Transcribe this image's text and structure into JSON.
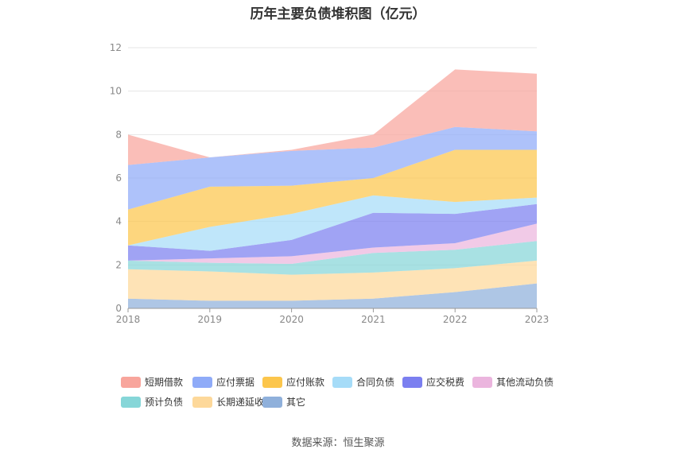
{
  "chart_data": {
    "type": "area",
    "title": "历年主要负债堆积图（亿元）",
    "x": [
      "2018",
      "2019",
      "2020",
      "2021",
      "2022",
      "2023"
    ],
    "ylim": [
      0,
      12
    ],
    "yticks": [
      0,
      2,
      4,
      6,
      8,
      10,
      12
    ],
    "grid": true,
    "legend_position": "bottom",
    "stacked": true,
    "series": [
      {
        "name": "其它",
        "color": "#8fb0db",
        "values": [
          0.45,
          0.35,
          0.35,
          0.45,
          0.75,
          1.15
        ]
      },
      {
        "name": "长期递延收益",
        "color": "#fdd89a",
        "values": [
          1.35,
          1.35,
          1.2,
          1.2,
          1.1,
          1.05
        ]
      },
      {
        "name": "预计负债",
        "color": "#86d6d8",
        "values": [
          0.4,
          0.4,
          0.5,
          0.9,
          0.85,
          0.9
        ]
      },
      {
        "name": "其他流动负债",
        "color": "#ebb5de",
        "values": [
          0.0,
          0.2,
          0.35,
          0.25,
          0.3,
          0.8
        ]
      },
      {
        "name": "应交税费",
        "color": "#7b7ff0",
        "values": [
          0.7,
          0.35,
          0.75,
          1.6,
          1.35,
          0.9
        ]
      },
      {
        "name": "合同负债",
        "color": "#a6dcf8",
        "values": [
          0.0,
          1.1,
          1.2,
          0.8,
          0.55,
          0.3
        ]
      },
      {
        "name": "应付账款",
        "color": "#fcc64c",
        "values": [
          1.65,
          1.85,
          1.3,
          0.8,
          2.4,
          2.2
        ]
      },
      {
        "name": "应付票据",
        "color": "#8fabf8",
        "values": [
          2.05,
          1.35,
          1.6,
          1.4,
          1.05,
          0.85
        ]
      },
      {
        "name": "短期借款",
        "color": "#f8a59c",
        "values": [
          1.4,
          0.0,
          0.05,
          0.6,
          2.65,
          2.65
        ]
      }
    ],
    "legend_order": [
      "短期借款",
      "应付票据",
      "应付账款",
      "合同负债",
      "应交税费",
      "其他流动负债",
      "预计负债",
      "长期递延收益",
      "其它"
    ]
  },
  "source_text": "数据来源：恒生聚源"
}
